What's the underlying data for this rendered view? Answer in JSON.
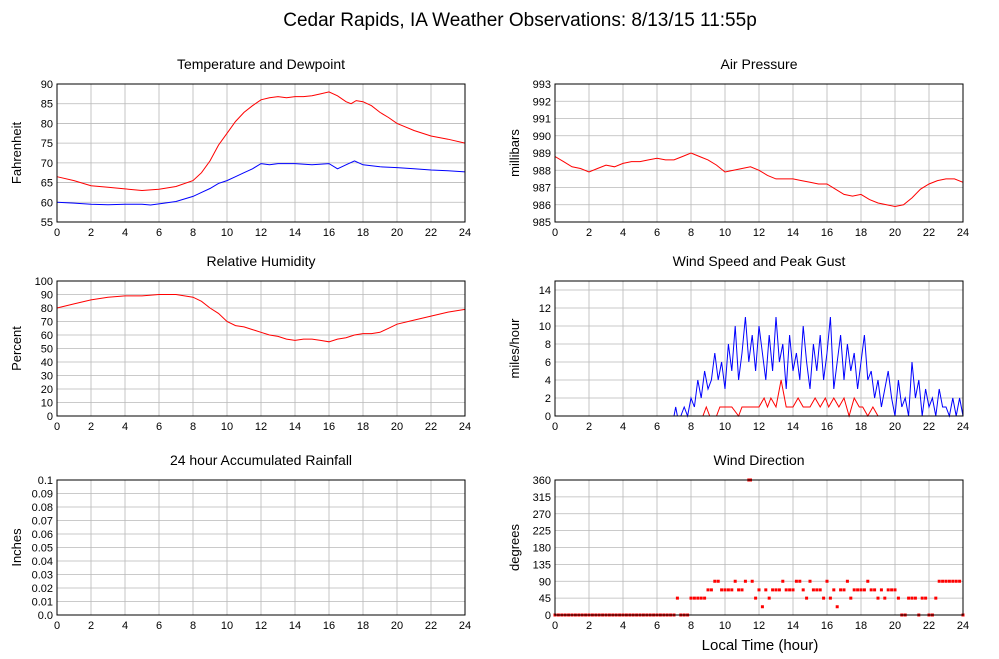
{
  "title": "Cedar Rapids, IA Weather Observations: 8/13/15 11:55p",
  "xlabel": "Local Time (hour)",
  "x_ticks": [
    0,
    2,
    4,
    6,
    8,
    10,
    12,
    14,
    16,
    18,
    20,
    22,
    24
  ],
  "chart_data": [
    {
      "id": "temp",
      "type": "line",
      "title": "Temperature and Dewpoint",
      "ylabel": "Fahrenheit",
      "xlim": [
        0,
        24
      ],
      "ylim": [
        55,
        90
      ],
      "y_ticks": [
        "55",
        "60",
        "65",
        "70",
        "75",
        "80",
        "85",
        "90"
      ],
      "y_tick_values": [
        55,
        60,
        65,
        70,
        75,
        80,
        85,
        90
      ],
      "grid": true,
      "series": [
        {
          "color": "#ff0000",
          "x": [
            0,
            1,
            2,
            3,
            4,
            5,
            6,
            7,
            8,
            8.5,
            9,
            9.5,
            10,
            10.5,
            11,
            11.5,
            12,
            12.5,
            13,
            13.5,
            14,
            14.5,
            15,
            15.5,
            16,
            16.5,
            17,
            17.3,
            17.6,
            18,
            18.5,
            19,
            19.5,
            20,
            21,
            22,
            23,
            24
          ],
          "y": [
            66.5,
            65.5,
            64.2,
            63.8,
            63.4,
            63.0,
            63.3,
            64.0,
            65.5,
            67.5,
            70.5,
            74.5,
            77.5,
            80.5,
            82.8,
            84.5,
            86.0,
            86.5,
            86.8,
            86.5,
            86.8,
            86.8,
            87.0,
            87.5,
            88.0,
            87.0,
            85.5,
            85.0,
            85.8,
            85.5,
            84.5,
            82.8,
            81.5,
            80.0,
            78.2,
            76.8,
            76.0,
            75.0
          ]
        },
        {
          "color": "#0000ff",
          "x": [
            0,
            1,
            2,
            3,
            4,
            5,
            5.5,
            6,
            7,
            8,
            8.5,
            9,
            9.5,
            10,
            10.5,
            11,
            11.5,
            12,
            12.5,
            13,
            14,
            15,
            16,
            16.5,
            17,
            17.5,
            18,
            19,
            20,
            21,
            22,
            23,
            24
          ],
          "y": [
            60.0,
            59.8,
            59.5,
            59.4,
            59.5,
            59.5,
            59.3,
            59.6,
            60.2,
            61.5,
            62.5,
            63.5,
            64.8,
            65.5,
            66.5,
            67.5,
            68.5,
            69.8,
            69.5,
            69.8,
            69.8,
            69.5,
            69.8,
            68.5,
            69.5,
            70.5,
            69.5,
            69.0,
            68.8,
            68.5,
            68.2,
            68.0,
            67.7
          ]
        }
      ]
    },
    {
      "id": "pressure",
      "type": "line",
      "title": "Air Pressure",
      "ylabel": "millibars",
      "xlim": [
        0,
        24
      ],
      "ylim": [
        985,
        993
      ],
      "y_ticks": [
        "985",
        "986",
        "987",
        "988",
        "989",
        "990",
        "991",
        "992",
        "993"
      ],
      "y_tick_values": [
        985,
        986,
        987,
        988,
        989,
        990,
        991,
        992,
        993
      ],
      "grid": true,
      "series": [
        {
          "color": "#ff0000",
          "x": [
            0,
            0.5,
            1,
            1.5,
            2,
            2.5,
            3,
            3.5,
            4,
            4.5,
            5,
            5.5,
            6,
            6.5,
            7,
            7.5,
            8,
            8.5,
            9,
            9.5,
            10,
            10.5,
            11,
            11.5,
            12,
            12.5,
            13,
            13.5,
            14,
            14.5,
            15,
            15.5,
            16,
            16.5,
            17,
            17.5,
            18,
            18.5,
            19,
            19.5,
            20,
            20.5,
            21,
            21.5,
            22,
            22.5,
            23,
            23.5,
            24
          ],
          "y": [
            988.8,
            988.5,
            988.2,
            988.1,
            987.9,
            988.1,
            988.3,
            988.2,
            988.4,
            988.5,
            988.5,
            988.6,
            988.7,
            988.6,
            988.6,
            988.8,
            989.0,
            988.8,
            988.6,
            988.3,
            987.9,
            988.0,
            988.1,
            988.2,
            988.0,
            987.7,
            987.5,
            987.5,
            987.5,
            987.4,
            987.3,
            987.2,
            987.2,
            986.9,
            986.6,
            986.5,
            986.6,
            986.3,
            986.1,
            986.0,
            985.9,
            986.0,
            986.4,
            986.9,
            987.2,
            987.4,
            987.5,
            987.5,
            987.3
          ]
        }
      ]
    },
    {
      "id": "humidity",
      "type": "line",
      "title": "Relative Humidity",
      "ylabel": "Percent",
      "xlim": [
        0,
        24
      ],
      "ylim": [
        0,
        100
      ],
      "y_ticks": [
        "0",
        "10",
        "20",
        "30",
        "40",
        "50",
        "60",
        "70",
        "80",
        "90",
        "100"
      ],
      "y_tick_values": [
        0,
        10,
        20,
        30,
        40,
        50,
        60,
        70,
        80,
        90,
        100
      ],
      "grid": true,
      "series": [
        {
          "color": "#ff0000",
          "x": [
            0,
            1,
            2,
            3,
            4,
            5,
            6,
            7,
            7.5,
            8,
            8.5,
            9,
            9.5,
            10,
            10.5,
            11,
            11.5,
            12,
            12.5,
            13,
            13.5,
            14,
            14.5,
            15,
            15.5,
            16,
            16.5,
            17,
            17.5,
            18,
            18.5,
            19,
            19.5,
            20,
            21,
            22,
            23,
            24
          ],
          "y": [
            80,
            83,
            86,
            88,
            89,
            89,
            90,
            90,
            89,
            88,
            85,
            80,
            76,
            70,
            67,
            66,
            64,
            62,
            60,
            59,
            57,
            56,
            57,
            57,
            56,
            55,
            57,
            58,
            60,
            61,
            61,
            62,
            65,
            68,
            71,
            74,
            77,
            79
          ]
        }
      ]
    },
    {
      "id": "wind",
      "type": "line",
      "title": "Wind Speed and Peak Gust",
      "ylabel": "miles/hour",
      "xlim": [
        0,
        24
      ],
      "ylim": [
        0,
        15
      ],
      "y_ticks": [
        "0",
        "2",
        "4",
        "6",
        "8",
        "10",
        "12",
        "14"
      ],
      "y_tick_values": [
        0,
        2,
        4,
        6,
        8,
        10,
        12,
        14
      ],
      "grid": true,
      "series": [
        {
          "color": "#0000ff",
          "x": [
            0,
            7.0,
            7.1,
            7.2,
            7.4,
            7.6,
            7.8,
            8.0,
            8.2,
            8.4,
            8.6,
            8.8,
            9.0,
            9.2,
            9.4,
            9.6,
            9.8,
            10.0,
            10.2,
            10.4,
            10.6,
            10.8,
            11.0,
            11.2,
            11.4,
            11.6,
            11.8,
            12.0,
            12.2,
            12.4,
            12.6,
            12.8,
            13.0,
            13.2,
            13.4,
            13.6,
            13.8,
            14.0,
            14.2,
            14.4,
            14.6,
            14.8,
            15.0,
            15.2,
            15.4,
            15.6,
            15.8,
            16.0,
            16.2,
            16.4,
            16.6,
            16.8,
            17.0,
            17.2,
            17.4,
            17.6,
            17.8,
            18.0,
            18.2,
            18.4,
            18.6,
            18.8,
            19.0,
            19.2,
            19.4,
            19.6,
            19.8,
            20.0,
            20.2,
            20.4,
            20.6,
            20.8,
            21.0,
            21.2,
            21.4,
            21.6,
            21.8,
            22.0,
            22.2,
            22.4,
            22.6,
            22.8,
            23.0,
            23.2,
            23.4,
            23.6,
            23.8,
            24.0
          ],
          "y": [
            0,
            0,
            1,
            0,
            0,
            1,
            0,
            2,
            1,
            4,
            2,
            5,
            3,
            4,
            7,
            4,
            6,
            3,
            8,
            5,
            10,
            4,
            7,
            11,
            6,
            9,
            5,
            10,
            7,
            4,
            9,
            5,
            11,
            6,
            8,
            3,
            9,
            5,
            7,
            4,
            10,
            6,
            3,
            8,
            5,
            9,
            4,
            7,
            11,
            3,
            6,
            9,
            4,
            8,
            5,
            7,
            3,
            6,
            9,
            4,
            5,
            2,
            4,
            1,
            3,
            5,
            2,
            0,
            4,
            1,
            2,
            0,
            6,
            2,
            4,
            0,
            3,
            1,
            2,
            0,
            3,
            1,
            1,
            0,
            2,
            0,
            2,
            0
          ]
        },
        {
          "color": "#ff0000",
          "x": [
            0,
            8.7,
            8.9,
            9.1,
            9.5,
            9.7,
            10.0,
            10.4,
            10.8,
            11.0,
            11.4,
            11.8,
            12.0,
            12.3,
            12.5,
            12.7,
            13.0,
            13.3,
            13.6,
            13.8,
            14.0,
            14.3,
            14.6,
            15.0,
            15.3,
            15.6,
            15.9,
            16.1,
            16.4,
            16.7,
            17.0,
            17.3,
            17.6,
            17.9,
            18.1,
            18.4,
            18.7,
            19.0,
            19.3,
            24
          ],
          "y": [
            0,
            0,
            1,
            0,
            0,
            1,
            1,
            1,
            0,
            1,
            1,
            1,
            1,
            2,
            1,
            2,
            1,
            4,
            1,
            1,
            1,
            2,
            1,
            1,
            2,
            1,
            2,
            1,
            2,
            1,
            2,
            0,
            2,
            1,
            1,
            0,
            1,
            0,
            0,
            0
          ]
        }
      ]
    },
    {
      "id": "rain",
      "type": "line",
      "title": "24 hour Accumulated Rainfall",
      "ylabel": "Inches",
      "xlim": [
        0,
        24
      ],
      "ylim": [
        0,
        0.1
      ],
      "y_ticks": [
        "0.0",
        "0.01",
        "0.02",
        "0.03",
        "0.04",
        "0.05",
        "0.06",
        "0.07",
        "0.08",
        "0.09",
        "0.1"
      ],
      "y_tick_values": [
        0,
        0.01,
        0.02,
        0.03,
        0.04,
        0.05,
        0.06,
        0.07,
        0.08,
        0.09,
        0.1
      ],
      "grid": true,
      "series": [
        {
          "color": "#ff0000",
          "x": [
            0,
            24
          ],
          "y": [
            0,
            0
          ]
        }
      ]
    },
    {
      "id": "direction",
      "type": "scatter",
      "title": "Wind Direction",
      "ylabel": "degrees",
      "xlim": [
        0,
        24
      ],
      "ylim": [
        0,
        360
      ],
      "y_ticks": [
        "0",
        "45",
        "90",
        "135",
        "180",
        "225",
        "270",
        "315",
        "360"
      ],
      "y_tick_values": [
        0,
        45,
        90,
        135,
        180,
        225,
        270,
        315,
        360
      ],
      "grid": true,
      "series": [
        {
          "color": "#ff0000",
          "x": [
            0,
            0.2,
            0.4,
            0.6,
            0.8,
            1.0,
            1.2,
            1.4,
            1.6,
            1.8,
            2.0,
            2.2,
            2.4,
            2.6,
            2.8,
            3.0,
            3.2,
            3.4,
            3.6,
            3.8,
            4.0,
            4.2,
            4.4,
            4.6,
            4.8,
            5.0,
            5.2,
            5.4,
            5.6,
            5.8,
            6.0,
            6.2,
            6.4,
            6.6,
            6.8,
            7.0,
            7.2,
            7.4,
            7.6,
            7.8,
            8.0,
            8.2,
            8.4,
            8.6,
            8.8,
            9.0,
            9.2,
            9.4,
            9.6,
            9.8,
            10.0,
            10.2,
            10.4,
            10.6,
            10.8,
            11.0,
            11.2,
            11.4,
            11.5,
            11.6,
            11.8,
            12.0,
            12.2,
            12.4,
            12.6,
            12.8,
            13.0,
            13.2,
            13.4,
            13.6,
            13.8,
            14.0,
            14.2,
            14.4,
            14.6,
            14.8,
            15.0,
            15.2,
            15.4,
            15.6,
            15.8,
            16.0,
            16.2,
            16.4,
            16.6,
            16.8,
            17.0,
            17.2,
            17.4,
            17.6,
            17.8,
            18.0,
            18.2,
            18.4,
            18.6,
            18.8,
            19.0,
            19.2,
            19.4,
            19.6,
            19.8,
            20.0,
            20.2,
            20.4,
            20.6,
            20.8,
            21.0,
            21.2,
            21.4,
            21.6,
            21.8,
            22.0,
            22.2,
            22.4,
            22.6,
            22.8,
            23.0,
            23.2,
            23.4,
            23.6,
            23.8,
            24.0
          ],
          "y": [
            0,
            0,
            0,
            0,
            0,
            0,
            0,
            0,
            0,
            0,
            0,
            0,
            0,
            0,
            0,
            0,
            0,
            0,
            0,
            0,
            0,
            0,
            0,
            0,
            0,
            0,
            0,
            0,
            0,
            0,
            0,
            0,
            0,
            0,
            0,
            0,
            45,
            0,
            0,
            0,
            45,
            45,
            45,
            45,
            45,
            67,
            67,
            90,
            90,
            67,
            67,
            67,
            67,
            90,
            67,
            67,
            90,
            360,
            360,
            90,
            45,
            67,
            22,
            67,
            45,
            67,
            67,
            67,
            90,
            67,
            67,
            67,
            90,
            90,
            67,
            45,
            90,
            67,
            67,
            67,
            45,
            90,
            45,
            67,
            22,
            67,
            67,
            90,
            45,
            67,
            67,
            67,
            67,
            90,
            67,
            67,
            45,
            67,
            45,
            67,
            67,
            67,
            45,
            0,
            0,
            45,
            45,
            45,
            0,
            45,
            45,
            0,
            0,
            45,
            90,
            90,
            90,
            90,
            90,
            90,
            90,
            0
          ]
        }
      ]
    }
  ]
}
